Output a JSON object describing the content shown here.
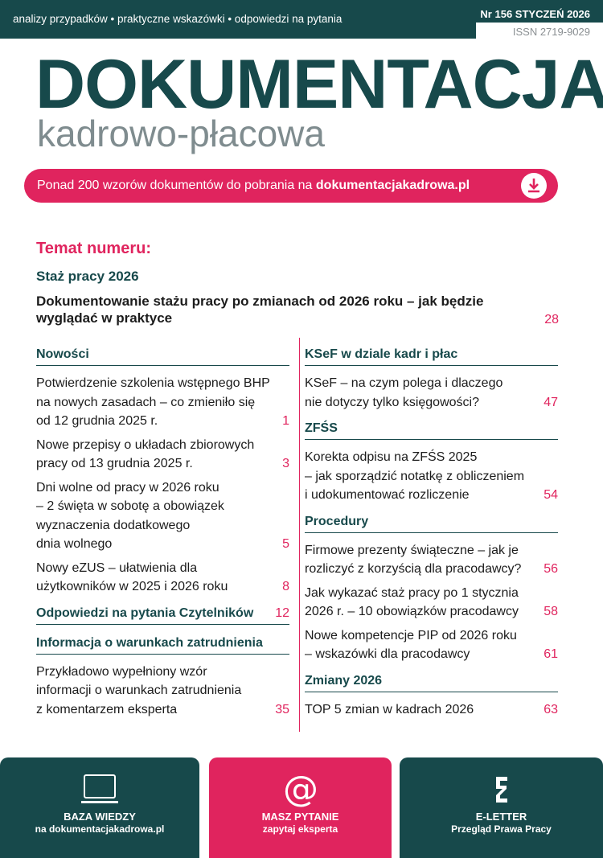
{
  "header": {
    "tagline": "analizy przypadków • praktyczne wskazówki • odpowiedzi na pytania",
    "issue": "Nr 156 STYCZEŃ 2026",
    "issn": "ISSN 2719-9029"
  },
  "masthead": {
    "title": "DOKUMENTACJA",
    "subtitle": "kadrowo-płacowa"
  },
  "banner": {
    "text": "Ponad 200 wzorów dokumentów do pobrania na",
    "link": "dokumentacjakadrowa.pl"
  },
  "feature": {
    "label": "Temat numeru:",
    "topic": "Staż pracy 2026",
    "lines": [
      "Dokumentowanie stażu pracy po zmianach od 2026 roku – jak będzie",
      "wyglądać w praktyce"
    ],
    "page": 28
  },
  "left": [
    {
      "heading": "Nowości",
      "items": [
        {
          "lines": [
            "Potwierdzenie szkolenia wstępnego BHP",
            "na nowych zasadach – co zmieniło się",
            "od 12 grudnia 2025 r."
          ],
          "page": 1
        },
        {
          "lines": [
            "Nowe przepisy o układach zbiorowych",
            "pracy od 13 grudnia 2025 r."
          ],
          "page": 3
        },
        {
          "lines": [
            "Dni wolne od pracy w 2026 roku",
            "– 2 święta w sobotę a obowiązek",
            "wyznaczenia dodatkowego",
            "dnia wolnego"
          ],
          "page": 5
        },
        {
          "lines": [
            "Nowy eZUS – ułatwienia dla",
            "użytkowników w 2025 i 2026 roku"
          ],
          "page": 8
        }
      ]
    },
    {
      "heading": "Odpowiedzi na pytania Czytelników",
      "page": 12,
      "items": []
    },
    {
      "heading": "Informacja o warunkach zatrudnienia",
      "items": [
        {
          "lines": [
            "Przykładowo wypełniony wzór",
            "informacji o warunkach zatrudnienia",
            "z komentarzem eksperta"
          ],
          "page": 35
        }
      ]
    }
  ],
  "right": [
    {
      "heading": "KSeF w dziale kadr i płac",
      "items": [
        {
          "lines": [
            "KSeF – na czym polega i dlaczego",
            "nie dotyczy tylko księgowości?"
          ],
          "page": 47
        }
      ]
    },
    {
      "heading": "ZFŚS",
      "items": [
        {
          "lines": [
            "Korekta odpisu na ZFŚS 2025",
            "– jak sporządzić notatkę z obliczeniem",
            "i udokumentować rozliczenie"
          ],
          "page": 54
        }
      ]
    },
    {
      "heading": "Procedury",
      "items": [
        {
          "lines": [
            "Firmowe prezenty świąteczne – jak je",
            "rozliczyć z korzyścią dla pracodawcy?"
          ],
          "page": 56
        },
        {
          "lines": [
            "Jak wykazać staż pracy po 1 stycznia",
            "2026 r. – 10 obowiązków pracodawcy"
          ],
          "page": 58
        },
        {
          "lines": [
            "Nowe kompetencje PIP od 2026 roku",
            "– wskazówki dla pracodawcy"
          ],
          "page": 61
        }
      ]
    },
    {
      "heading": "Zmiany 2026",
      "items": [
        {
          "lines": [
            "TOP 5 zmian w kadrach 2026"
          ],
          "page": 63
        }
      ]
    }
  ],
  "footer": [
    {
      "title": "BAZA WIEDZY",
      "subtitle": "na dokumentacjakadrowa.pl"
    },
    {
      "title": "MASZ PYTANIE",
      "subtitle": "zapytaj eksperta"
    },
    {
      "title": "E-LETTER",
      "subtitle": "Przegląd Prawa Pracy"
    }
  ]
}
